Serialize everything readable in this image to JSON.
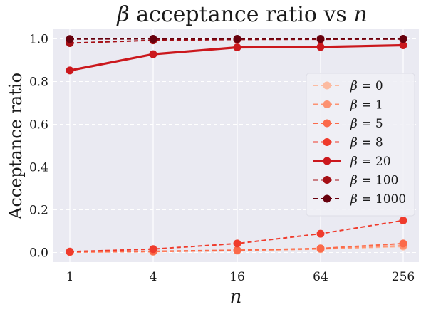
{
  "chart_data": {
    "type": "line",
    "title": {
      "greek": "β",
      "middle": " acceptance ratio vs ",
      "var": "n"
    },
    "xlabel": "n",
    "ylabel": "Acceptance ratio",
    "x": [
      1,
      4,
      16,
      64,
      256
    ],
    "x_scale": "log",
    "x_ticks": [
      "1",
      "4",
      "16",
      "64",
      "256"
    ],
    "y_ticks": [
      "0.0",
      "0.2",
      "0.4",
      "0.6",
      "0.8",
      "1.0"
    ],
    "ylim": [
      -0.045,
      1.045
    ],
    "grid": true,
    "legend_position": "center-right",
    "series": [
      {
        "name": "β = 0",
        "greek": "β",
        "rhs": "0",
        "color": "#fcbba1",
        "style": "dashed",
        "values": [
          0.002,
          0.004,
          0.009,
          0.016,
          0.028
        ]
      },
      {
        "name": "β = 1",
        "greek": "β",
        "rhs": "1",
        "color": "#fc9272",
        "style": "dashed",
        "values": [
          0.002,
          0.004,
          0.009,
          0.017,
          0.032
        ]
      },
      {
        "name": "β = 5",
        "greek": "β",
        "rhs": "5",
        "color": "#fb6a4a",
        "style": "dashed",
        "values": [
          0.003,
          0.006,
          0.011,
          0.019,
          0.042
        ]
      },
      {
        "name": "β = 8",
        "greek": "β",
        "rhs": "8",
        "color": "#ef3b2c",
        "style": "dashed",
        "values": [
          0.004,
          0.016,
          0.042,
          0.088,
          0.15
        ]
      },
      {
        "name": "β = 20",
        "greek": "β",
        "rhs": "20",
        "color": "#cb181d",
        "style": "solid",
        "values": [
          0.852,
          0.928,
          0.96,
          0.962,
          0.97
        ]
      },
      {
        "name": "β = 100",
        "greek": "β",
        "rhs": "100",
        "color": "#a50f15",
        "style": "dashed",
        "values": [
          0.98,
          0.993,
          0.997,
          0.998,
          0.999
        ]
      },
      {
        "name": "β = 1000",
        "greek": "β",
        "rhs": "1000",
        "color": "#67000d",
        "style": "dashed",
        "values": [
          0.999,
          1.0,
          1.0,
          1.0,
          1.0
        ]
      }
    ]
  }
}
